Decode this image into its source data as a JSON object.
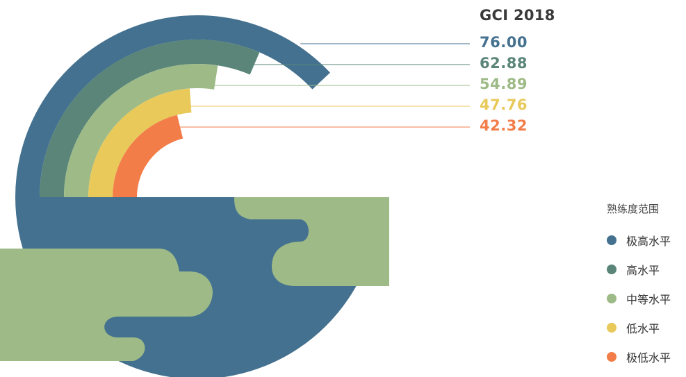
{
  "chart_data": {
    "type": "radial-bar",
    "title": "GCI 2018",
    "unit_note": "",
    "bars": [
      {
        "value": 76.0,
        "label": "76.00",
        "color": "#44718f"
      },
      {
        "value": 62.88,
        "label": "62.88",
        "color": "#5a8578"
      },
      {
        "value": 54.89,
        "label": "54.89",
        "color": "#9dba87"
      },
      {
        "value": 47.76,
        "label": "47.76",
        "color": "#e8c95a"
      },
      {
        "value": 42.32,
        "label": "42.32",
        "color": "#f27d48"
      }
    ],
    "legend": {
      "title": "熟练度范围",
      "items": [
        {
          "label": "极高水平",
          "color": "#44718f"
        },
        {
          "label": "高水平",
          "color": "#5a8578"
        },
        {
          "label": "中等水平",
          "color": "#9dba87"
        },
        {
          "label": "低水平",
          "color": "#e8c95a"
        },
        {
          "label": "极低水平",
          "color": "#f27d48"
        }
      ]
    },
    "scale_max": 100,
    "background_colors": {
      "ocean": "#44718f",
      "land": "#9dba87"
    }
  }
}
